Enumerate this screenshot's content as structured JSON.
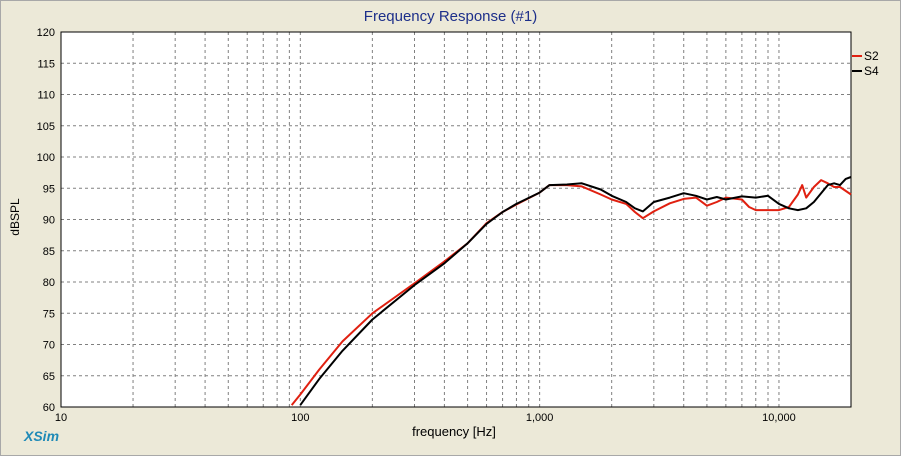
{
  "window": {
    "brand": "XSim"
  },
  "chart_data": {
    "type": "line",
    "title": "Frequency Response (#1)",
    "xlabel": "frequency [Hz]",
    "ylabel": "dBSPL",
    "xscale": "log",
    "xlim": [
      10,
      20000
    ],
    "ylim": [
      60,
      120
    ],
    "xticks": [
      10,
      100,
      1000,
      10000
    ],
    "xtick_labels": [
      "10",
      "100",
      "1,000",
      "10,000"
    ],
    "yticks": [
      60,
      65,
      70,
      75,
      80,
      85,
      90,
      95,
      100,
      105,
      110,
      115,
      120
    ],
    "ytick_labels": [
      "60",
      "65",
      "70",
      "75",
      "80",
      "85",
      "90",
      "95",
      "100",
      "105",
      "110",
      "115",
      "120"
    ],
    "grid": true,
    "legend_position": "right",
    "series": [
      {
        "name": "S2",
        "color": "#e02010",
        "x": [
          92,
          100,
          120,
          150,
          200,
          300,
          400,
          500,
          600,
          700,
          800,
          1000,
          1100,
          1300,
          1500,
          1800,
          2000,
          2300,
          2500,
          2700,
          3000,
          3500,
          4000,
          4500,
          5000,
          5500,
          6000,
          7000,
          7500,
          8000,
          9000,
          10000,
          11000,
          12000,
          12500,
          13000,
          14000,
          15000,
          16000,
          17000,
          18000,
          20000
        ],
        "y": [
          60.3,
          62,
          66,
          70.5,
          75,
          79.8,
          83.3,
          86.2,
          89.4,
          91.2,
          92.4,
          94.3,
          95.5,
          95.5,
          95.3,
          94,
          93.2,
          92.5,
          91.2,
          90.2,
          91.3,
          92.6,
          93.3,
          93.5,
          92.2,
          92.8,
          93.5,
          93.2,
          92,
          91.5,
          91.5,
          91.5,
          92,
          94,
          95.5,
          93.5,
          95.2,
          96.3,
          95.8,
          95.2,
          95.2,
          94
        ]
      },
      {
        "name": "S4",
        "color": "#000000",
        "x": [
          100,
          120,
          150,
          200,
          300,
          400,
          500,
          600,
          700,
          800,
          1000,
          1100,
          1300,
          1500,
          1800,
          2000,
          2300,
          2500,
          2700,
          3000,
          3500,
          4000,
          4500,
          5000,
          5500,
          6000,
          7000,
          8000,
          9000,
          10000,
          11000,
          12000,
          13000,
          14000,
          15000,
          16000,
          17000,
          18000,
          19000,
          20000
        ],
        "y": [
          60.3,
          64.5,
          69,
          74,
          79.5,
          83,
          86.2,
          89.3,
          91.2,
          92.5,
          94.3,
          95.5,
          95.6,
          95.8,
          94.8,
          93.8,
          92.8,
          91.8,
          91.3,
          92.8,
          93.5,
          94.2,
          93.8,
          93.2,
          93.6,
          93.2,
          93.7,
          93.5,
          93.8,
          92.5,
          91.8,
          91.5,
          91.8,
          92.8,
          94.2,
          95.5,
          95.8,
          95.5,
          96.5,
          96.8
        ]
      }
    ]
  }
}
